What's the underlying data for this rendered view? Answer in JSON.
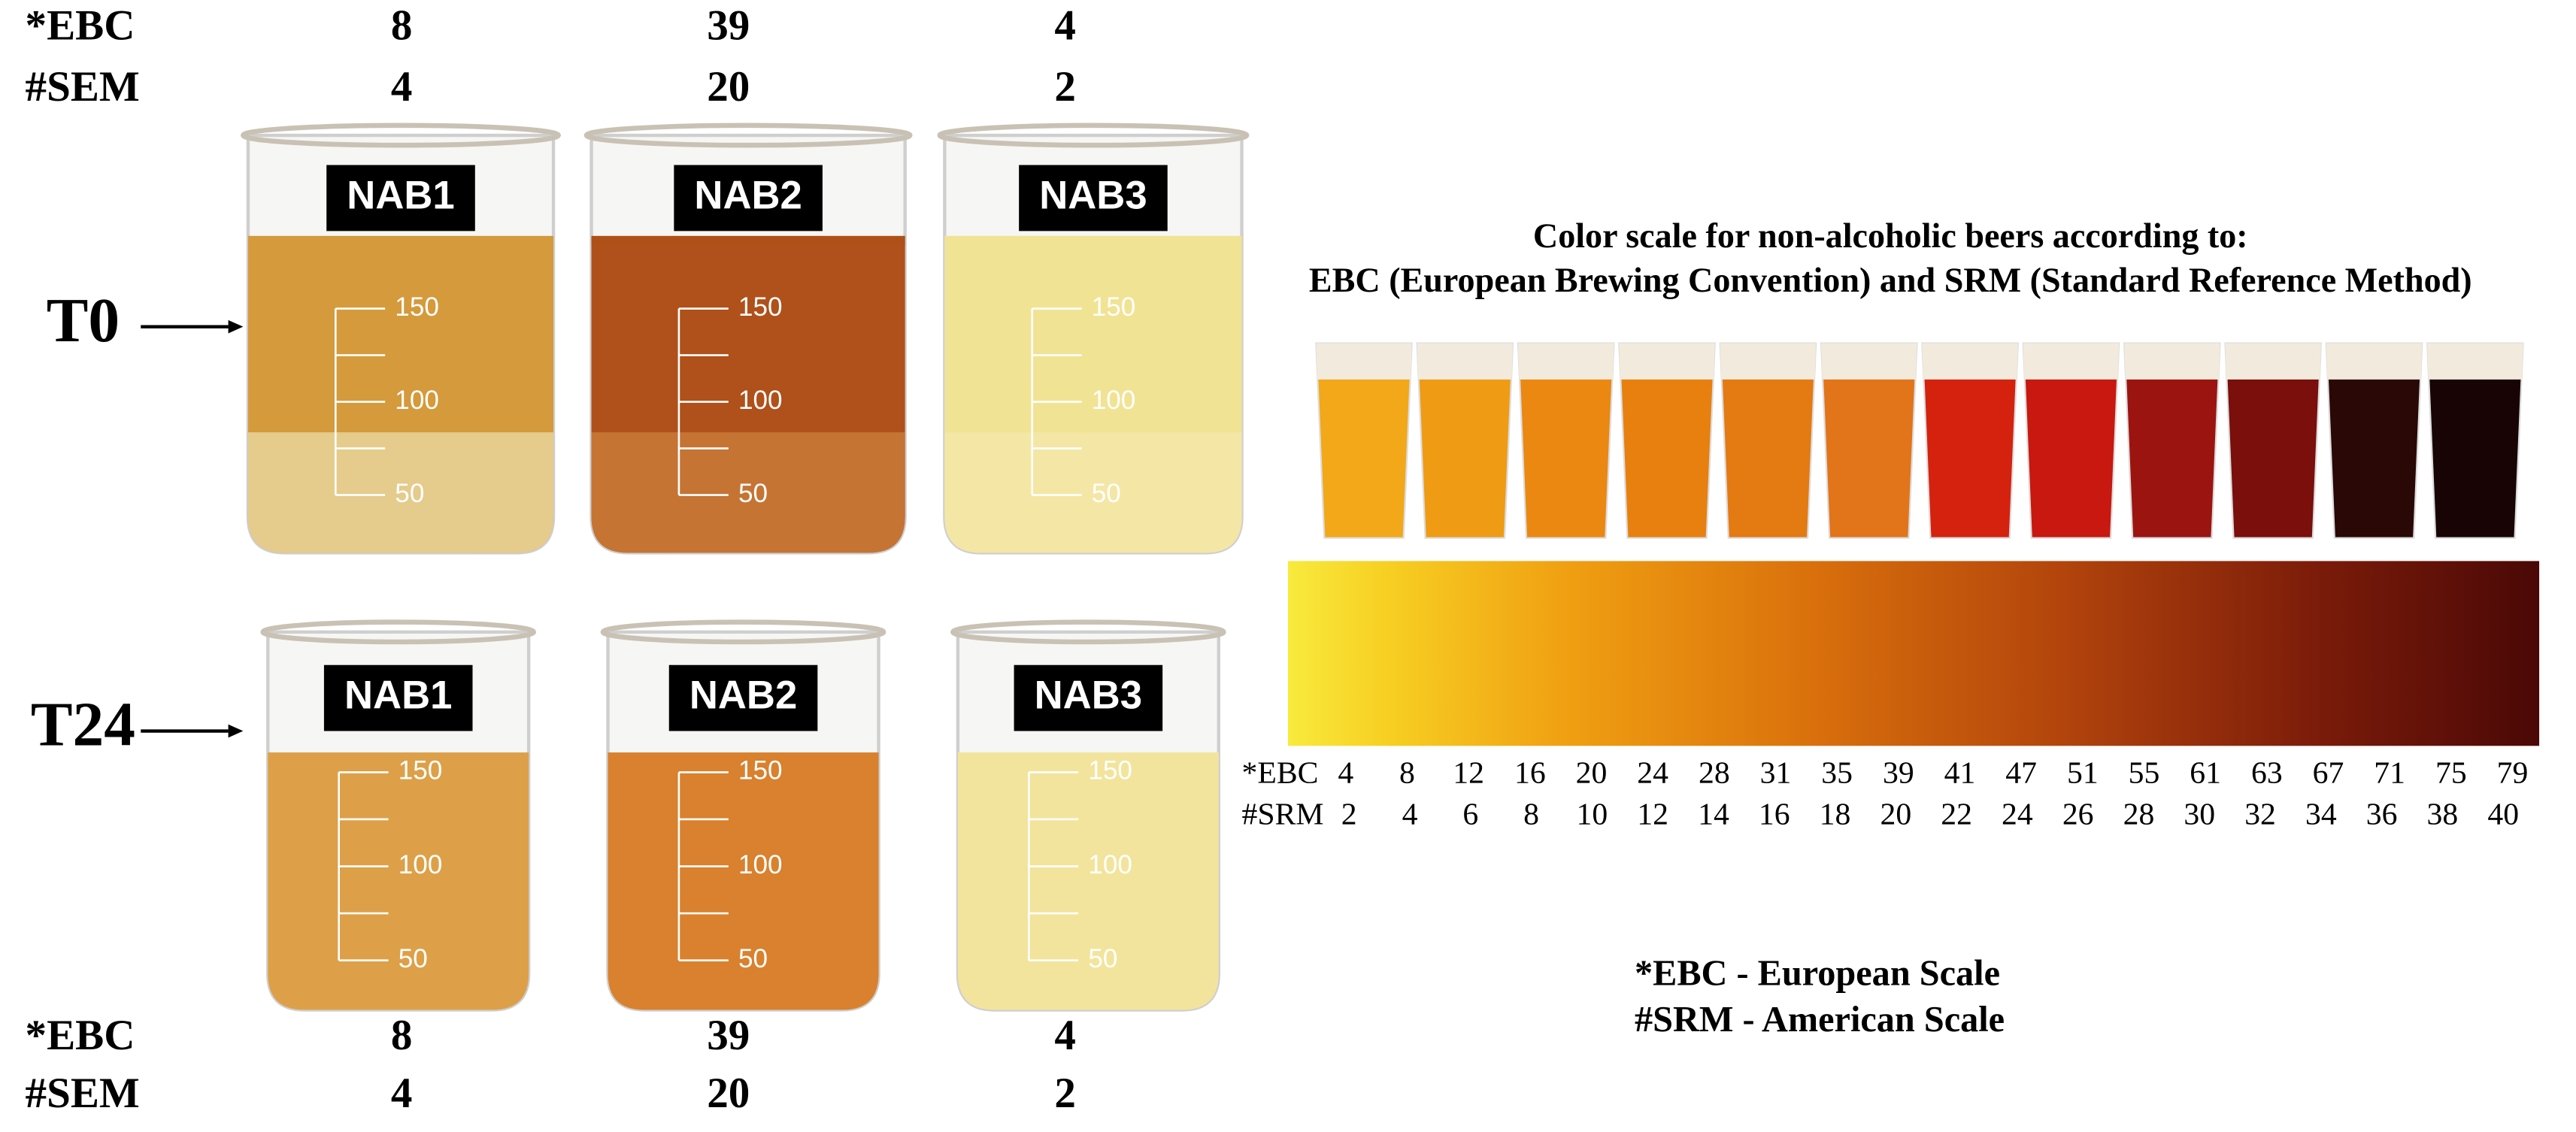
{
  "top_values": {
    "rows": [
      {
        "label": "*EBC",
        "values": [
          8,
          39,
          4
        ]
      },
      {
        "label": "#SEM",
        "values": [
          4,
          20,
          2
        ]
      }
    ]
  },
  "time_points": [
    {
      "label": "T0",
      "samples": [
        "NAB1",
        "NAB2",
        "NAB3"
      ]
    },
    {
      "label": "T24",
      "samples": [
        "NAB1",
        "NAB2",
        "NAB3"
      ]
    }
  ],
  "graduations": [
    150,
    100,
    50
  ],
  "bottom_values": {
    "rows": [
      {
        "label": "*EBC",
        "values": [
          8,
          39,
          4
        ]
      },
      {
        "label": "#SEM",
        "values": [
          4,
          20,
          2
        ]
      }
    ]
  },
  "color_scale": {
    "title": [
      "Color scale for non-alcoholic beers according to:",
      "EBC (European Brewing Convention) and SRM (Standard Reference Method)"
    ],
    "ebc_label": "*EBC",
    "ebc": [
      4,
      8,
      12,
      16,
      20,
      24,
      28,
      31,
      35,
      39,
      41,
      47,
      51,
      55,
      61,
      63,
      67,
      71,
      75,
      79
    ],
    "srm_label": "#SRM",
    "srm": [
      2,
      4,
      6,
      8,
      10,
      12,
      14,
      16,
      18,
      20,
      22,
      24,
      26,
      28,
      30,
      32,
      34,
      36,
      38,
      40
    ]
  },
  "legend": [
    "*EBC - European Scale",
    "#SRM - American Scale"
  ]
}
